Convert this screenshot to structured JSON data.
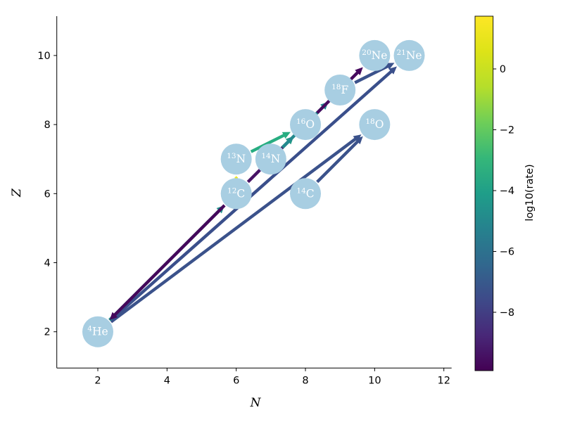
{
  "figure": {
    "background": "#ffffff"
  },
  "axes": {
    "xlabel": "N",
    "ylabel": "Z",
    "x_ticks": [
      2,
      4,
      6,
      8,
      10,
      12
    ],
    "y_ticks": [
      2,
      4,
      6,
      8,
      10
    ],
    "xlim": [
      0.8,
      12.2
    ],
    "ylim": [
      0.95,
      11.2
    ]
  },
  "colorbar": {
    "label": "log10(rate)",
    "ticks": [
      0,
      -2,
      -4,
      -6,
      -8
    ],
    "vmin": -9.9,
    "vmax": 1.7,
    "colormap": "viridis"
  },
  "chart_data": {
    "type": "scatter",
    "title": "",
    "xlabel": "N",
    "ylabel": "Z",
    "xlim": [
      0.8,
      12.2
    ],
    "ylim": [
      0.95,
      11.2
    ],
    "grid": false,
    "node_color": "#a8cee2",
    "node_label_color": "#ffffff",
    "nodes": [
      {
        "id": "4He",
        "sup": "4",
        "sym": "He",
        "n": 2,
        "z": 2
      },
      {
        "id": "12C",
        "sup": "12",
        "sym": "C",
        "n": 6,
        "z": 6
      },
      {
        "id": "13N",
        "sup": "13",
        "sym": "N",
        "n": 6,
        "z": 7
      },
      {
        "id": "14N",
        "sup": "14",
        "sym": "N",
        "n": 7,
        "z": 7
      },
      {
        "id": "14C",
        "sup": "14",
        "sym": "C",
        "n": 8,
        "z": 6
      },
      {
        "id": "16O",
        "sup": "16",
        "sym": "O",
        "n": 8,
        "z": 8
      },
      {
        "id": "18O",
        "sup": "18",
        "sym": "O",
        "n": 10,
        "z": 8
      },
      {
        "id": "18F",
        "sup": "18",
        "sym": "F",
        "n": 9,
        "z": 9
      },
      {
        "id": "20Ne",
        "sup": "20",
        "sym": "Ne",
        "n": 10,
        "z": 10
      },
      {
        "id": "21Ne",
        "sup": "21",
        "sym": "Ne",
        "n": 11,
        "z": 10
      }
    ],
    "edges": [
      {
        "from": "4He",
        "to": "18O",
        "log10_rate": -7.2,
        "color": "#3b528b"
      },
      {
        "from": "14C",
        "to": "18O",
        "log10_rate": -7.2,
        "color": "#3b528b"
      },
      {
        "from": "4He",
        "to": "21Ne",
        "log10_rate": -7.4,
        "color": "#3a4f8b"
      },
      {
        "from": "18F",
        "to": "21Ne",
        "log10_rate": -7.1,
        "color": "#3b528b"
      },
      {
        "from": "13N",
        "to": "16O",
        "log10_rate": -2.6,
        "color": "#27ad81"
      },
      {
        "from": "12C",
        "to": "16O",
        "log10_rate": -9.1,
        "color": "#471365"
      },
      {
        "from": "14N",
        "to": "16O",
        "log10_rate": -3.3,
        "color": "#1fa187"
      },
      {
        "from": "14N",
        "to": "18F",
        "log10_rate": -4.6,
        "color": "#23898e"
      },
      {
        "from": "4He",
        "to": "12C",
        "log10_rate": -4.1,
        "color": "#21918c"
      },
      {
        "from": "12C",
        "to": "4He",
        "log10_rate": -9.7,
        "color": "#45085b"
      },
      {
        "from": "16O",
        "to": "20Ne",
        "log10_rate": -9.5,
        "color": "#460a5e"
      },
      {
        "from": "12C",
        "to": "13N",
        "log10_rate": 1.2,
        "color": "#e8e419"
      }
    ]
  }
}
